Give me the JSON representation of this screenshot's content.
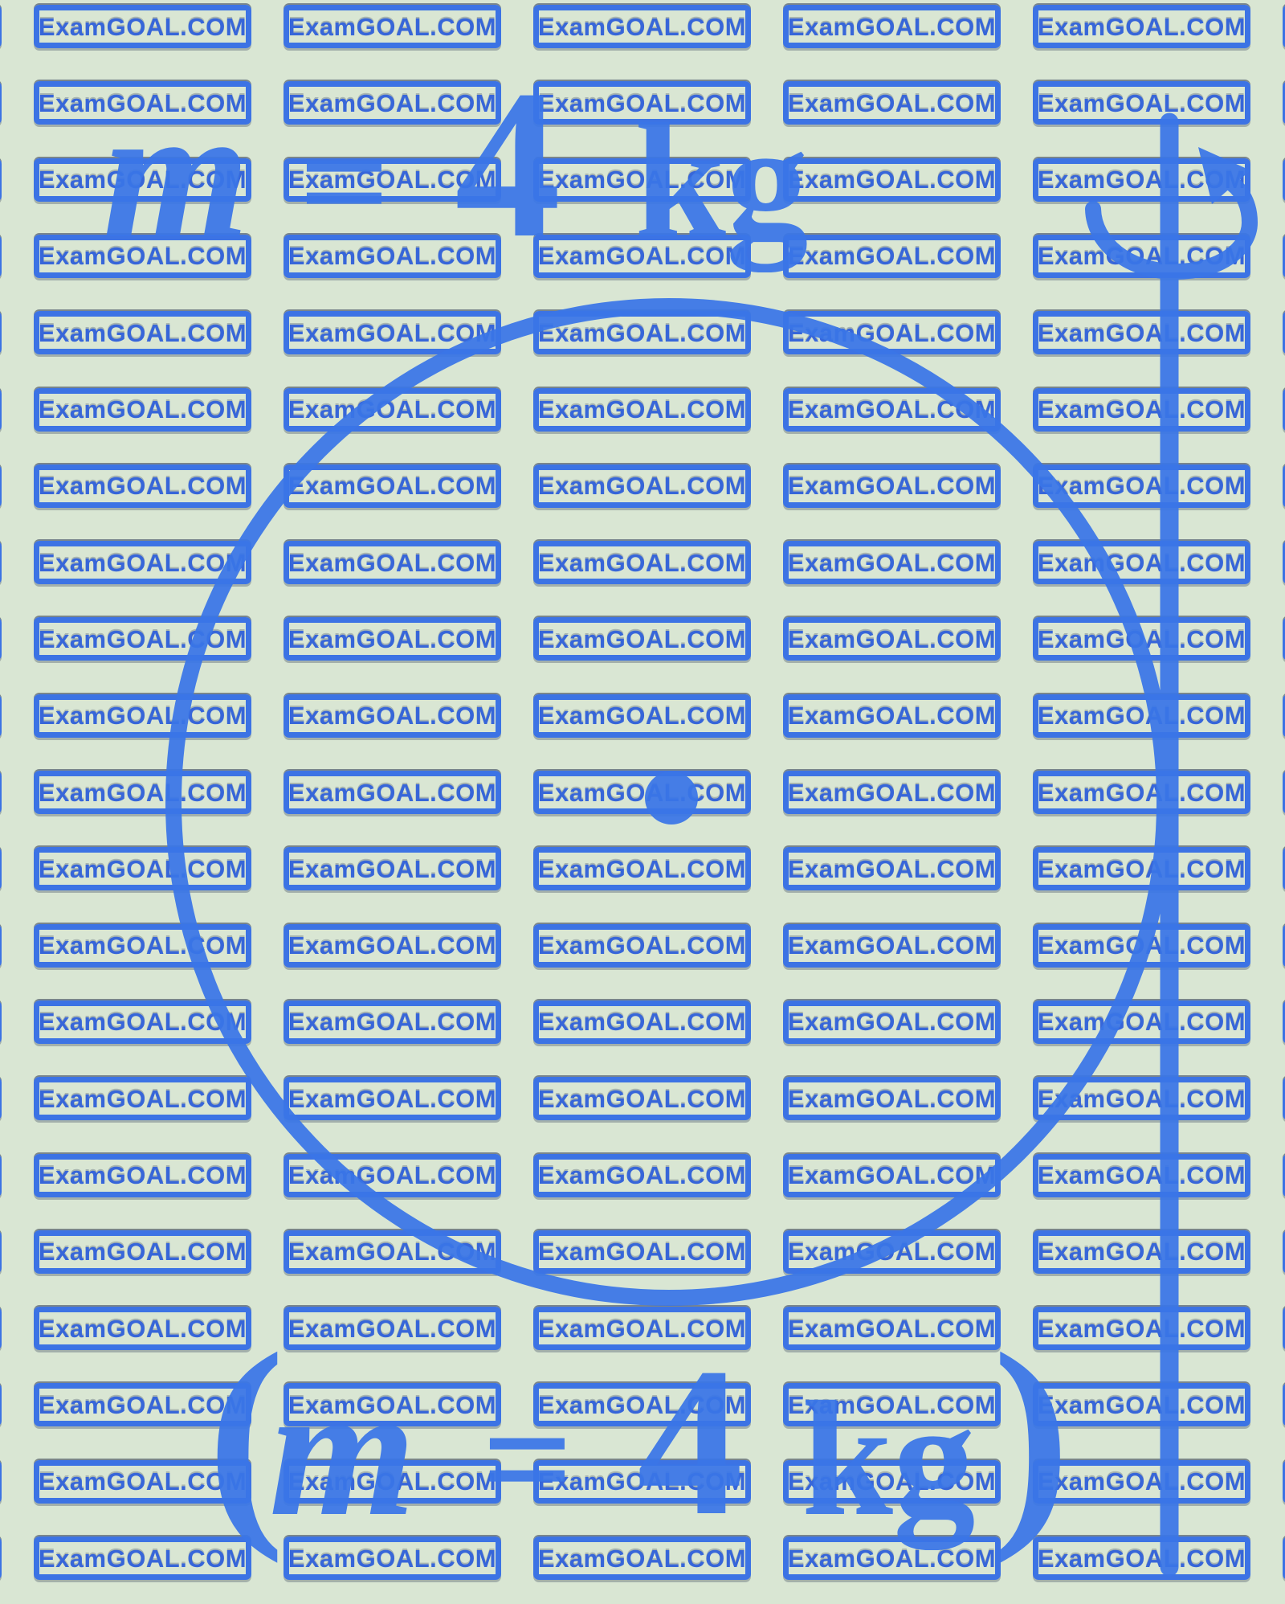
{
  "page": {
    "background_color": "#d9e6d3",
    "accent_color": "#3a76e8"
  },
  "watermark": {
    "text": "ExamGOAL.COM",
    "rows": 21,
    "cols": 7,
    "border_color": "#3c73e4",
    "text_color": "#3766d9"
  },
  "equations": {
    "top": [
      "m",
      "=",
      "4",
      "kg"
    ],
    "bottom": [
      "(",
      "m",
      "=",
      "4",
      "kg",
      ")"
    ]
  },
  "figure": {
    "shapes": [
      "ring",
      "center-point",
      "vertical-axis",
      "rotation-arrow"
    ],
    "stroke_color": "#3a76e8"
  }
}
